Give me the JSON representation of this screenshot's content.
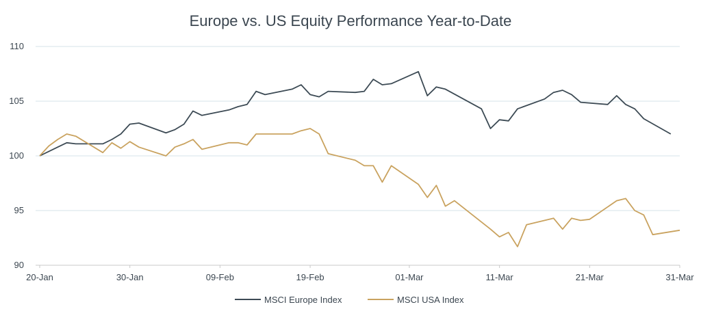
{
  "chart_data": {
    "type": "line",
    "title": "Europe vs. US Equity Performance Year-to-Date",
    "xlabel": "",
    "ylabel": "",
    "ylim": [
      90,
      110
    ],
    "xlim": [
      "2020-01-20",
      "2020-03-31"
    ],
    "y_ticks": [
      90,
      95,
      100,
      105,
      110
    ],
    "x_ticks": [
      {
        "date": "2020-01-20",
        "label": "20-Jan"
      },
      {
        "date": "2020-01-30",
        "label": "30-Jan"
      },
      {
        "date": "2020-02-09",
        "label": "09-Feb"
      },
      {
        "date": "2020-02-19",
        "label": "19-Feb"
      },
      {
        "date": "2020-03-01",
        "label": "01-Mar"
      },
      {
        "date": "2020-03-11",
        "label": "11-Mar"
      },
      {
        "date": "2020-03-21",
        "label": "21-Mar"
      },
      {
        "date": "2020-03-31",
        "label": "31-Mar"
      }
    ],
    "grid": "horizontal",
    "legend_position": "bottom",
    "series": [
      {
        "name": "MSCI Europe Index",
        "color": "#3c4a54",
        "points": [
          [
            "2020-01-20",
            100.0
          ],
          [
            "2020-01-21",
            100.4
          ],
          [
            "2020-01-22",
            100.8
          ],
          [
            "2020-01-23",
            101.2
          ],
          [
            "2020-01-24",
            101.1
          ],
          [
            "2020-01-27",
            101.1
          ],
          [
            "2020-01-28",
            101.5
          ],
          [
            "2020-01-29",
            102.0
          ],
          [
            "2020-01-30",
            102.9
          ],
          [
            "2020-01-31",
            103.0
          ],
          [
            "2020-02-03",
            102.1
          ],
          [
            "2020-02-04",
            102.4
          ],
          [
            "2020-02-05",
            102.9
          ],
          [
            "2020-02-06",
            104.1
          ],
          [
            "2020-02-07",
            103.7
          ],
          [
            "2020-02-10",
            104.2
          ],
          [
            "2020-02-11",
            104.5
          ],
          [
            "2020-02-12",
            104.7
          ],
          [
            "2020-02-13",
            105.9
          ],
          [
            "2020-02-14",
            105.6
          ],
          [
            "2020-02-17",
            106.1
          ],
          [
            "2020-02-18",
            106.5
          ],
          [
            "2020-02-19",
            105.6
          ],
          [
            "2020-02-20",
            105.4
          ],
          [
            "2020-02-21",
            105.9
          ],
          [
            "2020-02-24",
            105.8
          ],
          [
            "2020-02-25",
            105.9
          ],
          [
            "2020-02-26",
            107.0
          ],
          [
            "2020-02-27",
            106.5
          ],
          [
            "2020-02-28",
            106.6
          ],
          [
            "2020-03-02",
            107.7
          ],
          [
            "2020-03-03",
            105.5
          ],
          [
            "2020-03-04",
            106.3
          ],
          [
            "2020-03-05",
            106.1
          ],
          [
            "2020-03-09",
            104.3
          ],
          [
            "2020-03-10",
            102.5
          ],
          [
            "2020-03-11",
            103.3
          ],
          [
            "2020-03-12",
            103.2
          ],
          [
            "2020-03-13",
            104.3
          ],
          [
            "2020-03-16",
            105.2
          ],
          [
            "2020-03-17",
            105.8
          ],
          [
            "2020-03-18",
            106.0
          ],
          [
            "2020-03-19",
            105.6
          ],
          [
            "2020-03-20",
            104.9
          ],
          [
            "2020-03-23",
            104.7
          ],
          [
            "2020-03-24",
            105.5
          ],
          [
            "2020-03-25",
            104.7
          ],
          [
            "2020-03-26",
            104.3
          ],
          [
            "2020-03-27",
            103.4
          ],
          [
            "2020-03-30",
            102.0
          ]
        ]
      },
      {
        "name": "MSCI USA Index",
        "color": "#c9a25e",
        "points": [
          [
            "2020-01-20",
            100.0
          ],
          [
            "2020-01-21",
            100.9
          ],
          [
            "2020-01-22",
            101.5
          ],
          [
            "2020-01-23",
            102.0
          ],
          [
            "2020-01-24",
            101.8
          ],
          [
            "2020-01-27",
            100.3
          ],
          [
            "2020-01-28",
            101.2
          ],
          [
            "2020-01-29",
            100.7
          ],
          [
            "2020-01-30",
            101.3
          ],
          [
            "2020-01-31",
            100.8
          ],
          [
            "2020-02-03",
            100.0
          ],
          [
            "2020-02-04",
            100.8
          ],
          [
            "2020-02-05",
            101.1
          ],
          [
            "2020-02-06",
            101.5
          ],
          [
            "2020-02-07",
            100.6
          ],
          [
            "2020-02-10",
            101.2
          ],
          [
            "2020-02-11",
            101.2
          ],
          [
            "2020-02-12",
            101.0
          ],
          [
            "2020-02-13",
            102.0
          ],
          [
            "2020-02-17",
            102.0
          ],
          [
            "2020-02-18",
            102.3
          ],
          [
            "2020-02-19",
            102.5
          ],
          [
            "2020-02-20",
            102.0
          ],
          [
            "2020-02-21",
            100.2
          ],
          [
            "2020-02-24",
            99.6
          ],
          [
            "2020-02-25",
            99.1
          ],
          [
            "2020-02-26",
            99.1
          ],
          [
            "2020-02-27",
            97.6
          ],
          [
            "2020-02-28",
            99.1
          ],
          [
            "2020-03-02",
            97.4
          ],
          [
            "2020-03-03",
            96.2
          ],
          [
            "2020-03-04",
            97.3
          ],
          [
            "2020-03-05",
            95.4
          ],
          [
            "2020-03-06",
            95.9
          ],
          [
            "2020-03-10",
            93.3
          ],
          [
            "2020-03-11",
            92.6
          ],
          [
            "2020-03-12",
            93.0
          ],
          [
            "2020-03-13",
            91.7
          ],
          [
            "2020-03-14",
            93.7
          ],
          [
            "2020-03-17",
            94.3
          ],
          [
            "2020-03-18",
            93.3
          ],
          [
            "2020-03-19",
            94.3
          ],
          [
            "2020-03-20",
            94.1
          ],
          [
            "2020-03-21",
            94.2
          ],
          [
            "2020-03-24",
            95.9
          ],
          [
            "2020-03-25",
            96.1
          ],
          [
            "2020-03-26",
            95.0
          ],
          [
            "2020-03-27",
            94.6
          ],
          [
            "2020-03-28",
            92.8
          ],
          [
            "2020-03-31",
            93.2
          ]
        ]
      }
    ]
  }
}
